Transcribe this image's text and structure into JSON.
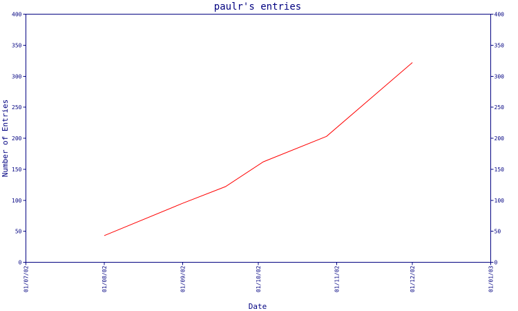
{
  "chart_data": {
    "type": "line",
    "title": "paulr's entries",
    "xlabel": "Date",
    "ylabel": "Number of Entries",
    "x_tick_labels": [
      "01/07/02",
      "01/08/02",
      "01/09/02",
      "01/10/02",
      "01/11/02",
      "01/12/02",
      "01/01/03"
    ],
    "y_tick_labels": [
      "0",
      "50",
      "100",
      "150",
      "200",
      "250",
      "300",
      "350",
      "400"
    ],
    "xlim": [
      "2002-07-01",
      "2003-01-01"
    ],
    "ylim": [
      0,
      400
    ],
    "grid": false,
    "legend": "none",
    "series": [
      {
        "color": "#ff0000",
        "points": [
          {
            "x": "2002-08-01",
            "y": 43
          },
          {
            "x": "2002-09-01",
            "y": 95
          },
          {
            "x": "2002-09-18",
            "y": 122
          },
          {
            "x": "2002-10-03",
            "y": 162
          },
          {
            "x": "2002-10-28",
            "y": 203
          },
          {
            "x": "2002-12-01",
            "y": 322
          }
        ]
      }
    ],
    "axis_color": "#000080"
  }
}
